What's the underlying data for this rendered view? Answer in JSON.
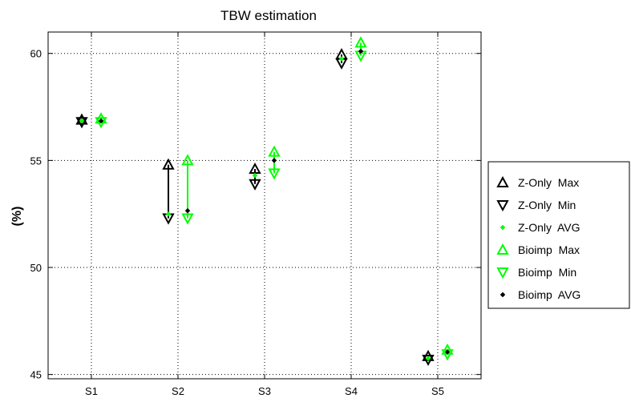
{
  "chart_data": {
    "type": "scatter",
    "title": "TBW estimation",
    "xlabel": "",
    "ylabel": "(%)",
    "categories": [
      "S1",
      "S2",
      "S3",
      "S4",
      "S5"
    ],
    "ylim": [
      44.8,
      61
    ],
    "yticks": [
      45,
      50,
      55,
      60
    ],
    "grid": true,
    "legend_position": "right",
    "series": [
      {
        "name": "Z-Only  Max",
        "marker": "triangle-up",
        "color": "#000000",
        "values": [
          56.9,
          54.8,
          54.6,
          59.95,
          45.85
        ]
      },
      {
        "name": "Z-Only  Min",
        "marker": "triangle-down",
        "color": "#000000",
        "values": [
          56.8,
          52.3,
          53.9,
          59.55,
          45.7
        ]
      },
      {
        "name": "Z-Only  AVG",
        "marker": "dot",
        "color": "#00ff00",
        "values": [
          56.85,
          52.5,
          54.3,
          59.75,
          45.75
        ]
      },
      {
        "name": "Bioimp  Max",
        "marker": "triangle-up",
        "color": "#00ff00",
        "values": [
          56.95,
          55.0,
          55.4,
          60.5,
          46.15
        ]
      },
      {
        "name": "Bioimp  Min",
        "marker": "triangle-down",
        "color": "#00ff00",
        "values": [
          56.8,
          52.3,
          54.4,
          59.9,
          45.95
        ]
      },
      {
        "name": "Bioimp  AVG",
        "marker": "dot",
        "color": "#000000",
        "values": [
          56.85,
          52.65,
          55.0,
          60.1,
          46.05
        ]
      }
    ]
  }
}
